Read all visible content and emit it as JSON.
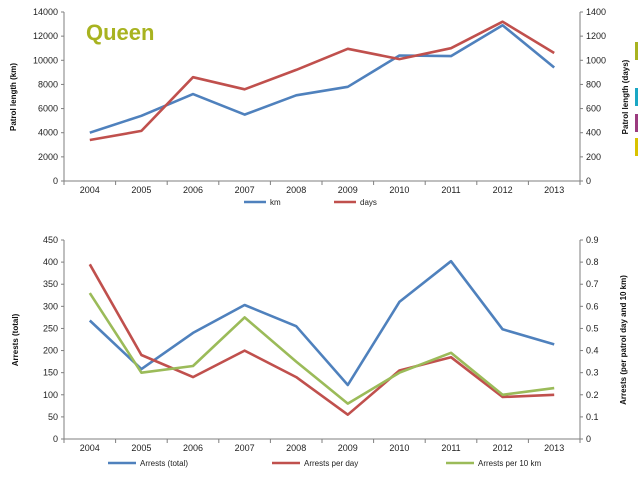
{
  "chart_data": [
    {
      "type": "line",
      "title": "Queen",
      "categories": [
        "2004",
        "2005",
        "2006",
        "2007",
        "2008",
        "2009",
        "2010",
        "2011",
        "2012",
        "2013"
      ],
      "ylabel": "Patrol length (km)",
      "y2label": "Patrol length (days)",
      "ylim": [
        0,
        14000
      ],
      "yticks": [
        "0",
        "2000",
        "4000",
        "6000",
        "8000",
        "10000",
        "12000",
        "14000"
      ],
      "y2lim": [
        0,
        1400
      ],
      "y2ticks": [
        "0",
        "200",
        "400",
        "600",
        "800",
        "1000",
        "1200",
        "1400"
      ],
      "series": [
        {
          "name": "km",
          "axis": "left",
          "color": "#4f81bd",
          "values": [
            4000,
            5400,
            7200,
            5500,
            7100,
            7800,
            10400,
            10350,
            12900,
            9400
          ]
        },
        {
          "name": "days",
          "axis": "right",
          "color": "#c0504d",
          "values": [
            340,
            415,
            860,
            760,
            920,
            1095,
            1010,
            1100,
            1320,
            1060
          ]
        }
      ],
      "legend_position": "bottom"
    },
    {
      "type": "line",
      "title": "",
      "categories": [
        "2004",
        "2005",
        "2006",
        "2007",
        "2008",
        "2009",
        "2010",
        "2011",
        "2012",
        "2013"
      ],
      "ylabel": "Arrests (total)",
      "y2label": "Arrests (per patrol day and 10 km)",
      "ylim": [
        0,
        450
      ],
      "yticks": [
        "0",
        "50",
        "100",
        "150",
        "200",
        "250",
        "300",
        "350",
        "400",
        "450"
      ],
      "y2lim": [
        0,
        0.9
      ],
      "y2ticks": [
        "0",
        "0.1",
        "0.2",
        "0.3",
        "0.4",
        "0.5",
        "0.6",
        "0.7",
        "0.8",
        "0.9"
      ],
      "series": [
        {
          "name": "Arrests (total)",
          "axis": "left",
          "color": "#4f81bd",
          "values": [
            268,
            158,
            240,
            303,
            255,
            122,
            310,
            402,
            248,
            214
          ]
        },
        {
          "name": "Arrests per day",
          "axis": "right",
          "color": "#c0504d",
          "values": [
            0.79,
            0.38,
            0.28,
            0.4,
            0.28,
            0.11,
            0.31,
            0.37,
            0.19,
            0.2
          ]
        },
        {
          "name": "Arrests per 10 km",
          "axis": "right",
          "color": "#9bbb59",
          "values": [
            0.66,
            0.3,
            0.33,
            0.55,
            0.35,
            0.16,
            0.3,
            0.39,
            0.2,
            0.23
          ]
        }
      ],
      "legend_position": "bottom"
    }
  ],
  "edge_swatches": [
    "#a8b320",
    "#1aa7c4",
    "#9b3b7f",
    "#d9c200"
  ]
}
